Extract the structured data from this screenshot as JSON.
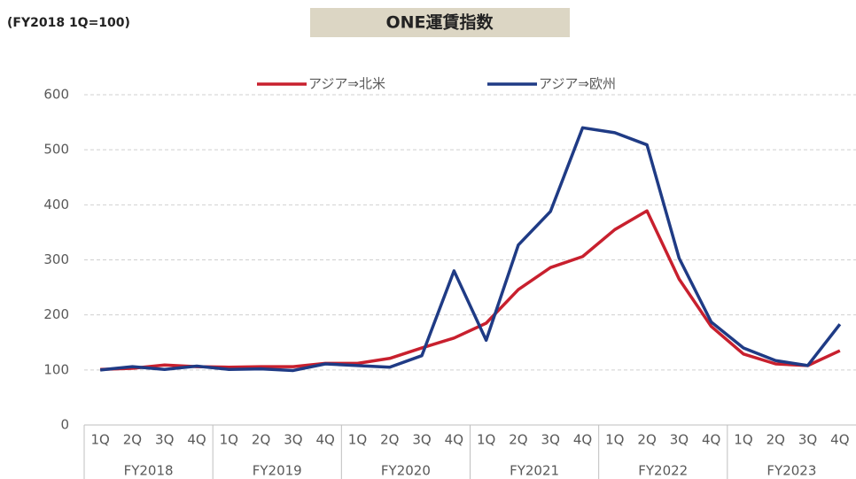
{
  "chart_data": {
    "type": "line",
    "title": "ONE運賃指数",
    "subtitle": "(FY2018 1Q=100)",
    "categories": [
      "1Q",
      "2Q",
      "3Q",
      "4Q",
      "1Q",
      "2Q",
      "3Q",
      "4Q",
      "1Q",
      "2Q",
      "3Q",
      "4Q",
      "1Q",
      "2Q",
      "3Q",
      "4Q",
      "1Q",
      "2Q",
      "3Q",
      "4Q",
      "1Q",
      "2Q",
      "3Q",
      "4Q"
    ],
    "category_groups": [
      "FY2018",
      "FY2019",
      "FY2020",
      "FY2021",
      "FY2022",
      "FY2023"
    ],
    "series": [
      {
        "name": "アジア⇒北米",
        "color": "#c8202e",
        "values": [
          101,
          103,
          109,
          106,
          105,
          106,
          106,
          112,
          112,
          121,
          140,
          158,
          185,
          246,
          286,
          306,
          355,
          389,
          265,
          179,
          129,
          111,
          108,
          135
        ]
      },
      {
        "name": "アジア⇒欧州",
        "color": "#1f3b85",
        "values": [
          100,
          106,
          101,
          107,
          101,
          102,
          99,
          111,
          108,
          105,
          126,
          280,
          154,
          327,
          388,
          540,
          531,
          509,
          303,
          187,
          140,
          117,
          108,
          183
        ]
      }
    ],
    "ylim": [
      0,
      600
    ],
    "yticks": [
      0,
      100,
      200,
      300,
      400,
      500,
      600
    ],
    "grid": true
  }
}
